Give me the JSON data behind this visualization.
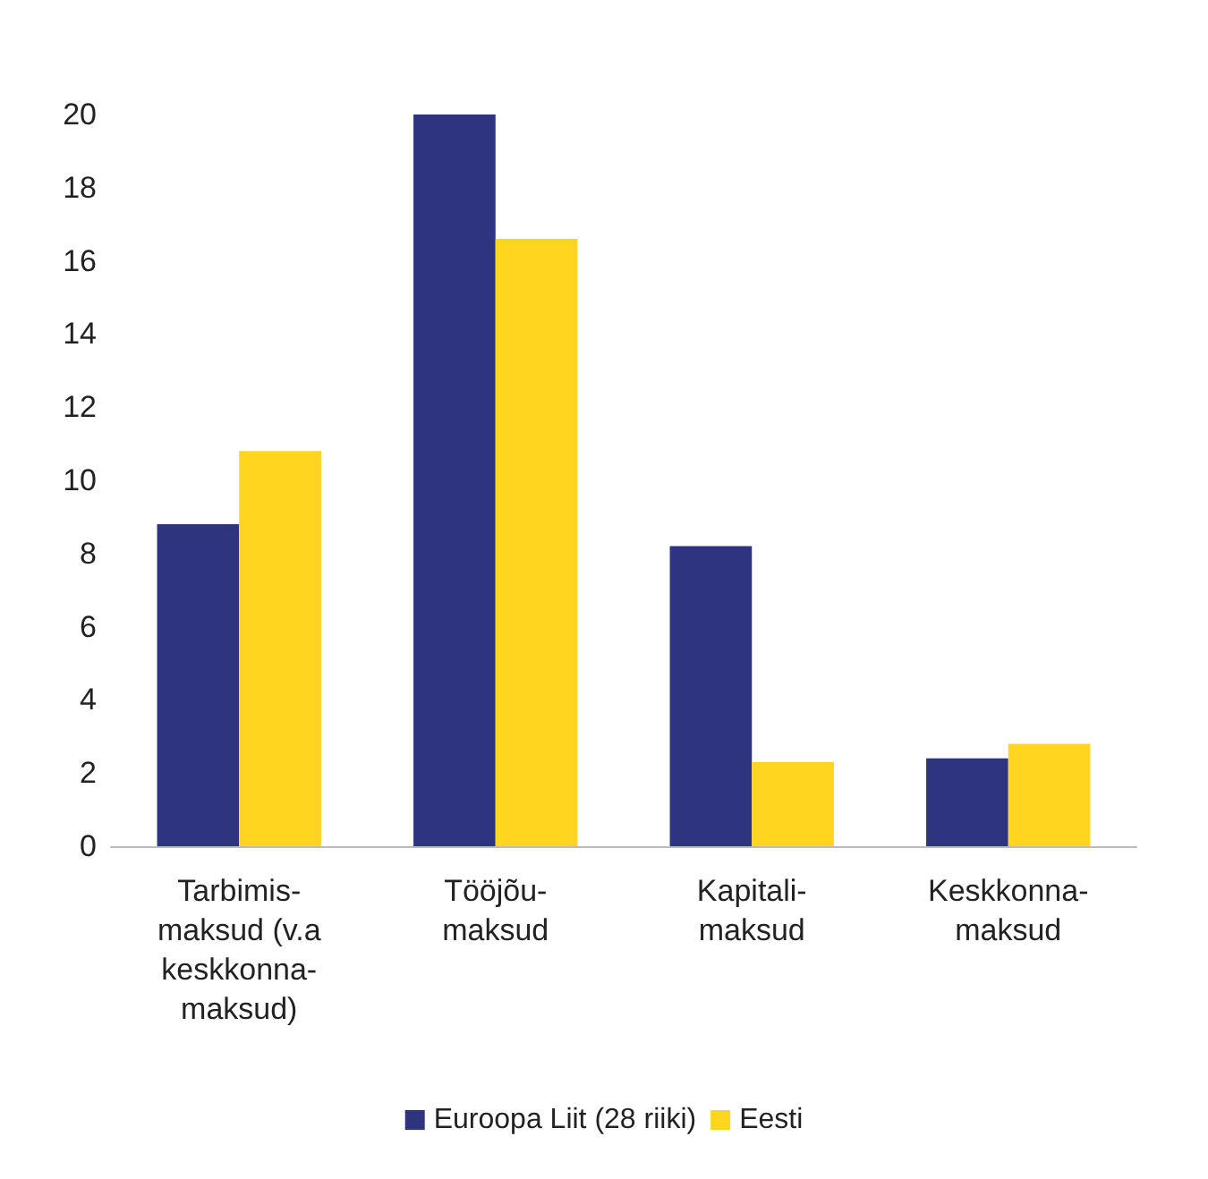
{
  "chart_data": {
    "type": "bar",
    "categories": [
      "Tarbimis-\nmaksud (v.a\nkeskkonna-\nmaksud)",
      "Tööjõu-\nmaksud",
      "Kapitali-\nmaksud",
      "Keskkonna-\nmaksud"
    ],
    "series": [
      {
        "name": "Euroopa Liit (28 riiki)",
        "color": "#2e3480",
        "values": [
          8.8,
          20.0,
          8.2,
          2.4
        ]
      },
      {
        "name": "Eesti",
        "color": "#ffd520",
        "values": [
          10.8,
          16.6,
          2.3,
          2.8
        ]
      }
    ],
    "ylim": [
      0,
      20
    ],
    "yticks": [
      0,
      2,
      4,
      6,
      8,
      10,
      12,
      14,
      16,
      18,
      20
    ],
    "grid": false,
    "legend": "bottom"
  }
}
